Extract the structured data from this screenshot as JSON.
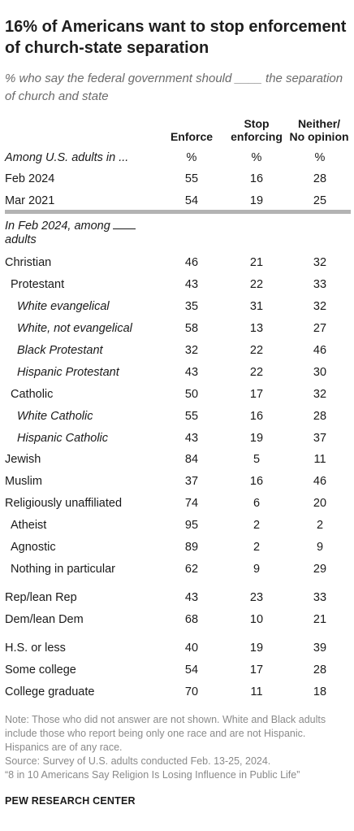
{
  "title": "16% of Americans want to stop enforcement of church-state separation",
  "subtitle": "% who say the federal government should ____ the separation of church and state",
  "columns": {
    "enforce": "Enforce",
    "stop_line1": "Stop",
    "stop_line2": "enforcing",
    "neither_line1": "Neither/",
    "neither_line2": "No opinion"
  },
  "section1": {
    "label": "Among U.S. adults in ...",
    "unit": "%",
    "rows": [
      {
        "label": "Feb 2024",
        "enforce": "55",
        "stop": "16",
        "neither": "28"
      },
      {
        "label": "Mar 2021",
        "enforce": "54",
        "stop": "19",
        "neither": "25"
      }
    ]
  },
  "section2": {
    "label_part1": "In Feb 2024, among",
    "label_part2": "adults",
    "rows": [
      {
        "label": "Christian",
        "enforce": "46",
        "stop": "21",
        "neither": "32"
      },
      {
        "label": "Protestant",
        "enforce": "43",
        "stop": "22",
        "neither": "33"
      },
      {
        "label": "White evangelical",
        "enforce": "35",
        "stop": "31",
        "neither": "32"
      },
      {
        "label": "White, not evangelical",
        "enforce": "58",
        "stop": "13",
        "neither": "27"
      },
      {
        "label": "Black Protestant",
        "enforce": "32",
        "stop": "22",
        "neither": "46"
      },
      {
        "label": "Hispanic Protestant",
        "enforce": "43",
        "stop": "22",
        "neither": "30"
      },
      {
        "label": "Catholic",
        "enforce": "50",
        "stop": "17",
        "neither": "32"
      },
      {
        "label": "White Catholic",
        "enforce": "55",
        "stop": "16",
        "neither": "28"
      },
      {
        "label": "Hispanic Catholic",
        "enforce": "43",
        "stop": "19",
        "neither": "37"
      },
      {
        "label": "Jewish",
        "enforce": "84",
        "stop": "5",
        "neither": "11"
      },
      {
        "label": "Muslim",
        "enforce": "37",
        "stop": "16",
        "neither": "46"
      },
      {
        "label": "Religiously unaffiliated",
        "enforce": "74",
        "stop": "6",
        "neither": "20"
      },
      {
        "label": "Atheist",
        "enforce": "95",
        "stop": "2",
        "neither": "2"
      },
      {
        "label": "Agnostic",
        "enforce": "89",
        "stop": "2",
        "neither": "9"
      },
      {
        "label": "Nothing in particular",
        "enforce": "62",
        "stop": "9",
        "neither": "29"
      },
      {
        "label": "Rep/lean Rep",
        "enforce": "43",
        "stop": "23",
        "neither": "33"
      },
      {
        "label": "Dem/lean Dem",
        "enforce": "68",
        "stop": "10",
        "neither": "21"
      },
      {
        "label": "H.S. or less",
        "enforce": "40",
        "stop": "19",
        "neither": "39"
      },
      {
        "label": "Some college",
        "enforce": "54",
        "stop": "17",
        "neither": "28"
      },
      {
        "label": "College graduate",
        "enforce": "70",
        "stop": "11",
        "neither": "18"
      }
    ]
  },
  "note": "Note: Those who did not answer are not shown. White and Black adults include those who report being only one race and are not Hispanic. Hispanics are of any race.",
  "source_line1": "Source: Survey of U.S. adults conducted Feb. 13-25, 2024.",
  "source_line2": "“8 in 10 Americans Say Religion Is Losing Influence in Public Life”",
  "brand": "PEW RESEARCH CENTER"
}
